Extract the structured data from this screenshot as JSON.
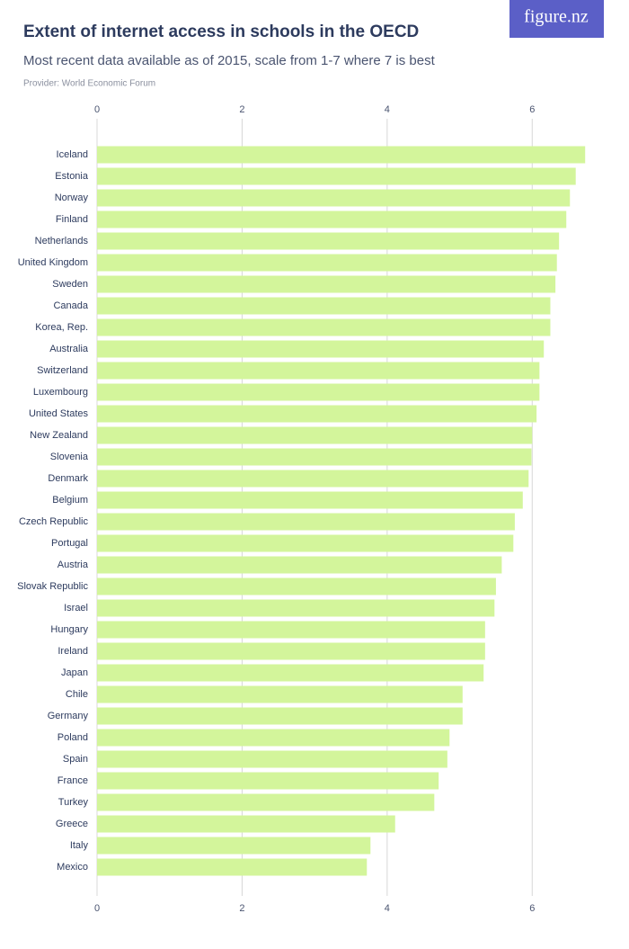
{
  "logo": "figure.nz",
  "chart_data": {
    "type": "bar",
    "orientation": "horizontal",
    "title": "Extent of internet access in schools in the OECD",
    "subtitle": "Most recent data available as of 2015, scale from 1-7 where 7 is best",
    "provider": "Provider: World Economic Forum",
    "categories": [
      "Iceland",
      "Estonia",
      "Norway",
      "Finland",
      "Netherlands",
      "United Kingdom",
      "Sweden",
      "Canada",
      "Korea, Rep.",
      "Australia",
      "Switzerland",
      "Luxembourg",
      "United States",
      "New Zealand",
      "Slovenia",
      "Denmark",
      "Belgium",
      "Czech Republic",
      "Portugal",
      "Austria",
      "Slovak Republic",
      "Israel",
      "Hungary",
      "Ireland",
      "Japan",
      "Chile",
      "Germany",
      "Poland",
      "Spain",
      "France",
      "Turkey",
      "Greece",
      "Italy",
      "Mexico"
    ],
    "values": [
      6.73,
      6.6,
      6.52,
      6.47,
      6.37,
      6.34,
      6.32,
      6.25,
      6.25,
      6.16,
      6.1,
      6.1,
      6.06,
      6.0,
      5.99,
      5.95,
      5.87,
      5.76,
      5.74,
      5.58,
      5.5,
      5.48,
      5.35,
      5.35,
      5.33,
      5.04,
      5.04,
      4.86,
      4.83,
      4.71,
      4.65,
      4.11,
      3.77,
      3.72
    ],
    "color": "#d3f59b",
    "xlim": [
      0,
      7
    ],
    "xticks": [
      0,
      2,
      4,
      6
    ],
    "grid": true
  }
}
